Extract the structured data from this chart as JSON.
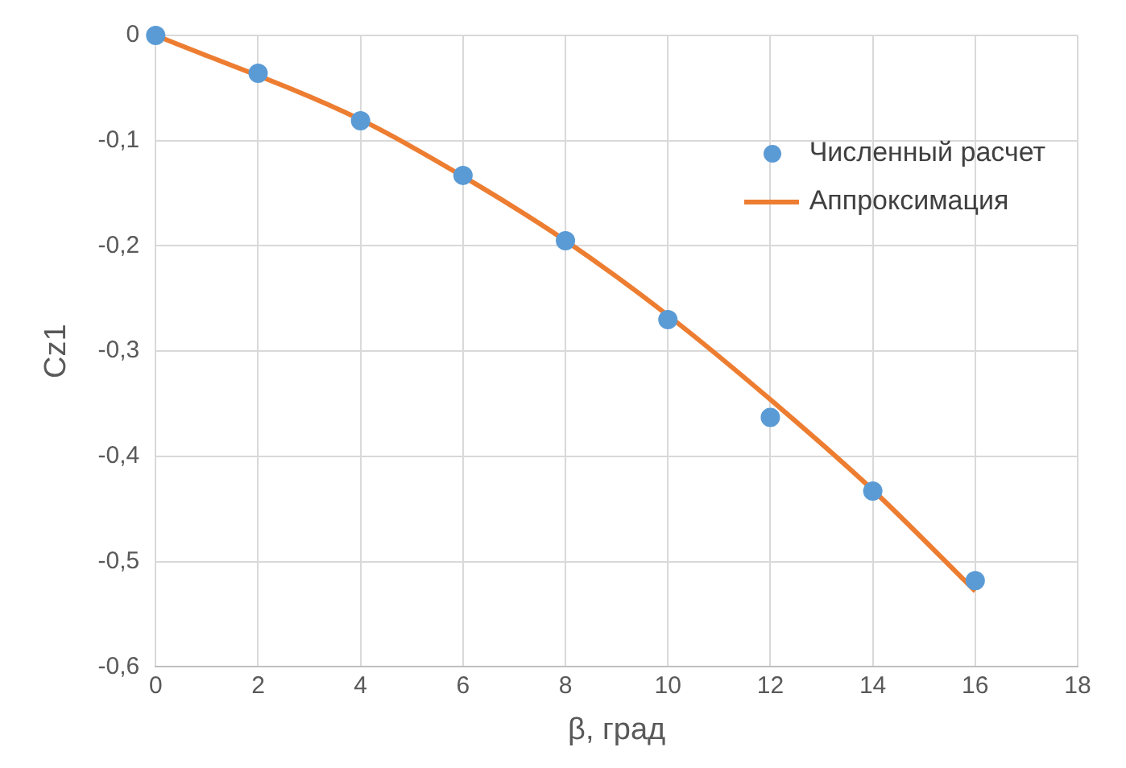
{
  "chart_data": {
    "type": "scatter",
    "xlabel": "β, град",
    "ylabel": "Cz1",
    "xlim": [
      0,
      18
    ],
    "xticks": [
      0,
      2,
      4,
      6,
      8,
      10,
      12,
      14,
      16,
      18
    ],
    "ylim": [
      -0.6,
      0
    ],
    "yticks": [
      {
        "value": -0.6,
        "label": "-0,6"
      },
      {
        "value": -0.5,
        "label": "-0,5"
      },
      {
        "value": -0.4,
        "label": "-0,4"
      },
      {
        "value": -0.3,
        "label": "-0,3"
      },
      {
        "value": -0.2,
        "label": "-0,2"
      },
      {
        "value": -0.1,
        "label": "-0,1"
      },
      0
    ],
    "grid": true,
    "legend": "top right",
    "series": [
      {
        "name": "Численный расчет",
        "type": "scatter",
        "marker": "circle",
        "color": "#5b9bd5",
        "x": [
          0,
          2,
          4,
          6,
          8,
          10,
          12,
          14,
          16
        ],
        "values": [
          0,
          -0.036,
          -0.081,
          -0.133,
          -0.195,
          -0.27,
          -0.363,
          -0.433,
          -0.518
        ]
      },
      {
        "name": "Аппроксимация",
        "type": "line",
        "marker": "none",
        "line_style": "solid",
        "color": "#ed7d31",
        "x": [
          0,
          4,
          6,
          8,
          10,
          12,
          14,
          16
        ],
        "values": [
          0,
          -0.08,
          -0.134,
          -0.195,
          -0.266,
          -0.346,
          -0.432,
          -0.528
        ]
      }
    ]
  }
}
